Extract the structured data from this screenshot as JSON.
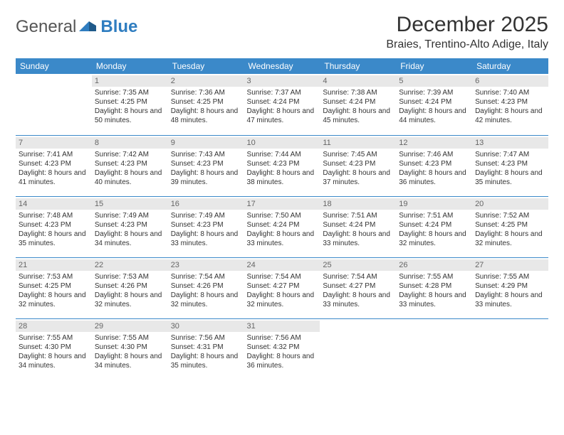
{
  "logo": {
    "general": "General",
    "blue": "Blue"
  },
  "title": "December 2025",
  "location": "Braies, Trentino-Alto Adige, Italy",
  "colors": {
    "header_bg": "#3b89c9",
    "header_text": "#ffffff",
    "daynum_bg": "#e8e8e8",
    "daynum_text": "#666666",
    "body_text": "#333333",
    "rule": "#3b89c9",
    "logo_blue": "#2f7dc0",
    "logo_gray": "#555555"
  },
  "weekdays": [
    "Sunday",
    "Monday",
    "Tuesday",
    "Wednesday",
    "Thursday",
    "Friday",
    "Saturday"
  ],
  "first_weekday_index": 1,
  "days": [
    {
      "n": 1,
      "sunrise": "7:35 AM",
      "sunset": "4:25 PM",
      "daylight": "8 hours and 50 minutes."
    },
    {
      "n": 2,
      "sunrise": "7:36 AM",
      "sunset": "4:25 PM",
      "daylight": "8 hours and 48 minutes."
    },
    {
      "n": 3,
      "sunrise": "7:37 AM",
      "sunset": "4:24 PM",
      "daylight": "8 hours and 47 minutes."
    },
    {
      "n": 4,
      "sunrise": "7:38 AM",
      "sunset": "4:24 PM",
      "daylight": "8 hours and 45 minutes."
    },
    {
      "n": 5,
      "sunrise": "7:39 AM",
      "sunset": "4:24 PM",
      "daylight": "8 hours and 44 minutes."
    },
    {
      "n": 6,
      "sunrise": "7:40 AM",
      "sunset": "4:23 PM",
      "daylight": "8 hours and 42 minutes."
    },
    {
      "n": 7,
      "sunrise": "7:41 AM",
      "sunset": "4:23 PM",
      "daylight": "8 hours and 41 minutes."
    },
    {
      "n": 8,
      "sunrise": "7:42 AM",
      "sunset": "4:23 PM",
      "daylight": "8 hours and 40 minutes."
    },
    {
      "n": 9,
      "sunrise": "7:43 AM",
      "sunset": "4:23 PM",
      "daylight": "8 hours and 39 minutes."
    },
    {
      "n": 10,
      "sunrise": "7:44 AM",
      "sunset": "4:23 PM",
      "daylight": "8 hours and 38 minutes."
    },
    {
      "n": 11,
      "sunrise": "7:45 AM",
      "sunset": "4:23 PM",
      "daylight": "8 hours and 37 minutes."
    },
    {
      "n": 12,
      "sunrise": "7:46 AM",
      "sunset": "4:23 PM",
      "daylight": "8 hours and 36 minutes."
    },
    {
      "n": 13,
      "sunrise": "7:47 AM",
      "sunset": "4:23 PM",
      "daylight": "8 hours and 35 minutes."
    },
    {
      "n": 14,
      "sunrise": "7:48 AM",
      "sunset": "4:23 PM",
      "daylight": "8 hours and 35 minutes."
    },
    {
      "n": 15,
      "sunrise": "7:49 AM",
      "sunset": "4:23 PM",
      "daylight": "8 hours and 34 minutes."
    },
    {
      "n": 16,
      "sunrise": "7:49 AM",
      "sunset": "4:23 PM",
      "daylight": "8 hours and 33 minutes."
    },
    {
      "n": 17,
      "sunrise": "7:50 AM",
      "sunset": "4:24 PM",
      "daylight": "8 hours and 33 minutes."
    },
    {
      "n": 18,
      "sunrise": "7:51 AM",
      "sunset": "4:24 PM",
      "daylight": "8 hours and 33 minutes."
    },
    {
      "n": 19,
      "sunrise": "7:51 AM",
      "sunset": "4:24 PM",
      "daylight": "8 hours and 32 minutes."
    },
    {
      "n": 20,
      "sunrise": "7:52 AM",
      "sunset": "4:25 PM",
      "daylight": "8 hours and 32 minutes."
    },
    {
      "n": 21,
      "sunrise": "7:53 AM",
      "sunset": "4:25 PM",
      "daylight": "8 hours and 32 minutes."
    },
    {
      "n": 22,
      "sunrise": "7:53 AM",
      "sunset": "4:26 PM",
      "daylight": "8 hours and 32 minutes."
    },
    {
      "n": 23,
      "sunrise": "7:54 AM",
      "sunset": "4:26 PM",
      "daylight": "8 hours and 32 minutes."
    },
    {
      "n": 24,
      "sunrise": "7:54 AM",
      "sunset": "4:27 PM",
      "daylight": "8 hours and 32 minutes."
    },
    {
      "n": 25,
      "sunrise": "7:54 AM",
      "sunset": "4:27 PM",
      "daylight": "8 hours and 33 minutes."
    },
    {
      "n": 26,
      "sunrise": "7:55 AM",
      "sunset": "4:28 PM",
      "daylight": "8 hours and 33 minutes."
    },
    {
      "n": 27,
      "sunrise": "7:55 AM",
      "sunset": "4:29 PM",
      "daylight": "8 hours and 33 minutes."
    },
    {
      "n": 28,
      "sunrise": "7:55 AM",
      "sunset": "4:30 PM",
      "daylight": "8 hours and 34 minutes."
    },
    {
      "n": 29,
      "sunrise": "7:55 AM",
      "sunset": "4:30 PM",
      "daylight": "8 hours and 34 minutes."
    },
    {
      "n": 30,
      "sunrise": "7:56 AM",
      "sunset": "4:31 PM",
      "daylight": "8 hours and 35 minutes."
    },
    {
      "n": 31,
      "sunrise": "7:56 AM",
      "sunset": "4:32 PM",
      "daylight": "8 hours and 36 minutes."
    }
  ],
  "labels": {
    "sunrise": "Sunrise:",
    "sunset": "Sunset:",
    "daylight": "Daylight:"
  }
}
